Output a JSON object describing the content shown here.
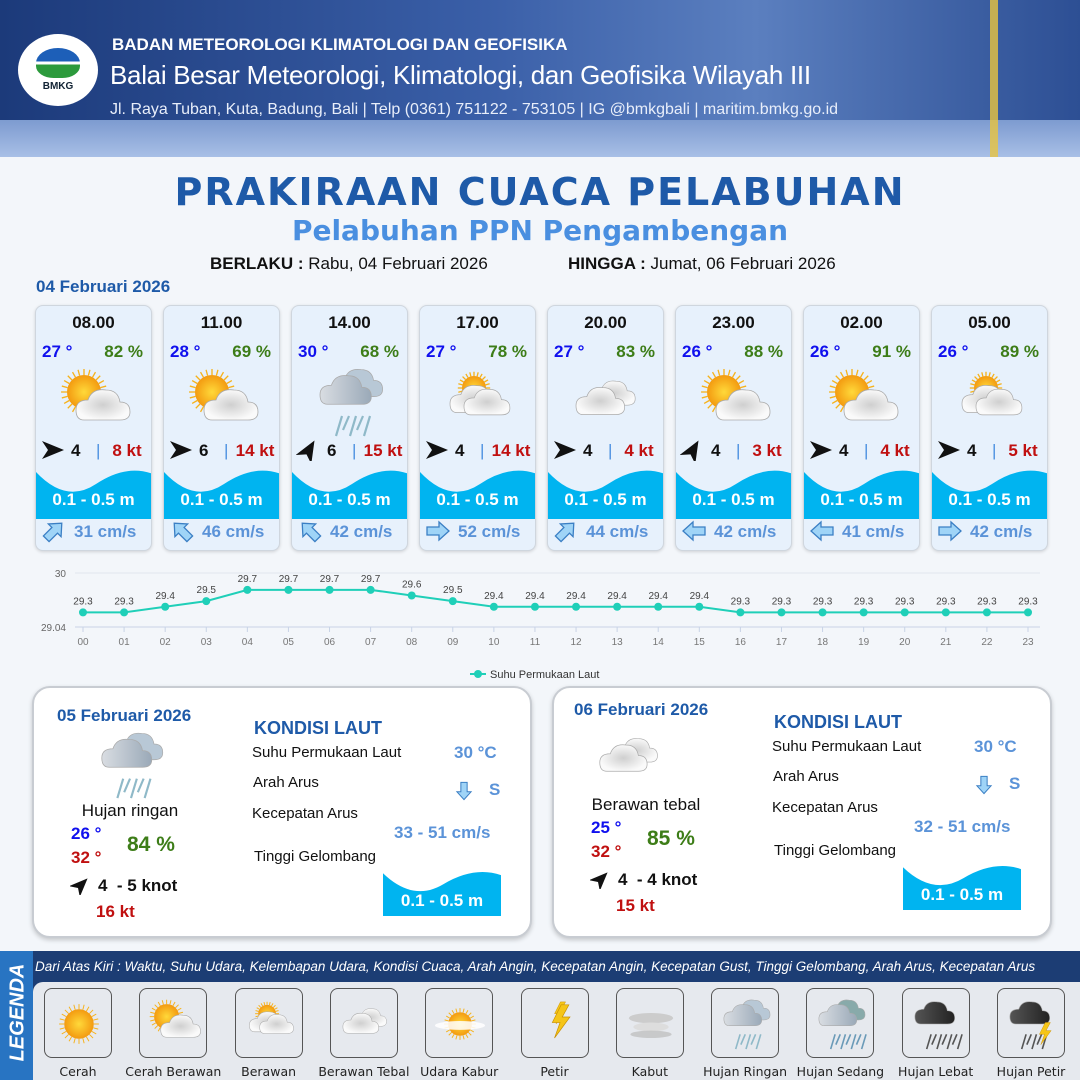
{
  "header": {
    "org": "BADAN METEOROLOGI KLIMATOLOGI DAN GEOFISIKA",
    "office": "Balai Besar Meteorologi, Klimatologi, dan Geofisika Wilayah III",
    "contact": "Jl. Raya Tuban, Kuta, Badung, Bali | Telp (0361) 751122 - 753105 | IG @bmkgbali | maritim.bmkg.go.id",
    "logo_text": "BMKG"
  },
  "title": "PRAKIRAAN CUACA PELABUHAN",
  "subtitle": "Pelabuhan PPN Pengambengan",
  "validity": {
    "from_label": "BERLAKU :",
    "from": "Rabu, 04 Februari 2026",
    "to_label": "HINGGA :",
    "to": "Jumat, 06 Februari 2026"
  },
  "today_date": "04 Februari 2026",
  "forecasts": [
    {
      "time": "08.00",
      "temp": "27 °",
      "humidity": "82 %",
      "icon": "cerah-berawan",
      "wind_dir_deg": 0,
      "wind_speed": "4",
      "gust": "8 kt",
      "wave": "0.1 - 0.5 m",
      "current_dir_deg": -45,
      "current_speed": "31 cm/s"
    },
    {
      "time": "11.00",
      "temp": "28 °",
      "humidity": "69 %",
      "icon": "cerah-berawan",
      "wind_dir_deg": 0,
      "wind_speed": "6",
      "gust": "14 kt",
      "wave": "0.1 - 0.5 m",
      "current_dir_deg": -135,
      "current_speed": "46 cm/s"
    },
    {
      "time": "14.00",
      "temp": "30 °",
      "humidity": "68 %",
      "icon": "hujan-ringan",
      "wind_dir_deg": -60,
      "wind_speed": "6",
      "gust": "15 kt",
      "wave": "0.1 - 0.5 m",
      "current_dir_deg": -135,
      "current_speed": "42 cm/s"
    },
    {
      "time": "17.00",
      "temp": "27 °",
      "humidity": "78 %",
      "icon": "berawan",
      "wind_dir_deg": 0,
      "wind_speed": "4",
      "gust": "14 kt",
      "wave": "0.1 - 0.5 m",
      "current_dir_deg": 0,
      "current_speed": "52 cm/s"
    },
    {
      "time": "20.00",
      "temp": "27 °",
      "humidity": "83 %",
      "icon": "berawan-tebal",
      "wind_dir_deg": 0,
      "wind_speed": "4",
      "gust": "4 kt",
      "wave": "0.1 - 0.5 m",
      "current_dir_deg": -45,
      "current_speed": "44 cm/s"
    },
    {
      "time": "23.00",
      "temp": "26 °",
      "humidity": "88 %",
      "icon": "cerah-berawan",
      "wind_dir_deg": -60,
      "wind_speed": "4",
      "gust": "3 kt",
      "wave": "0.1 - 0.5 m",
      "current_dir_deg": 180,
      "current_speed": "42 cm/s"
    },
    {
      "time": "02.00",
      "temp": "26 °",
      "humidity": "91 %",
      "icon": "cerah-berawan",
      "wind_dir_deg": 0,
      "wind_speed": "4",
      "gust": "4 kt",
      "wave": "0.1 - 0.5 m",
      "current_dir_deg": 180,
      "current_speed": "41 cm/s"
    },
    {
      "time": "05.00",
      "temp": "26 °",
      "humidity": "89 %",
      "icon": "berawan",
      "wind_dir_deg": 0,
      "wind_speed": "4",
      "gust": "5 kt",
      "wave": "0.1 - 0.5 m",
      "current_dir_deg": 0,
      "current_speed": "42 cm/s"
    }
  ],
  "chart_data": {
    "type": "line",
    "x": [
      "00",
      "01",
      "02",
      "03",
      "04",
      "05",
      "06",
      "07",
      "08",
      "09",
      "10",
      "11",
      "12",
      "13",
      "14",
      "15",
      "16",
      "17",
      "18",
      "19",
      "20",
      "21",
      "22",
      "23"
    ],
    "series": [
      {
        "name": "Suhu Permukaan Laut",
        "values": [
          29.3,
          29.3,
          29.4,
          29.5,
          29.7,
          29.7,
          29.7,
          29.7,
          29.6,
          29.5,
          29.4,
          29.4,
          29.4,
          29.4,
          29.4,
          29.4,
          29.3,
          29.3,
          29.3,
          29.3,
          29.3,
          29.3,
          29.3,
          29.3
        ],
        "color": "#1fcfb8"
      }
    ],
    "ylim": [
      29.04,
      30
    ],
    "yticks": [
      "29.04",
      "30"
    ],
    "legend": "bottom-center",
    "grid": true
  },
  "days": [
    {
      "date": "05 Februari 2026",
      "icon": "hujan-ringan",
      "condition": "Hujan ringan",
      "temp_min": "26 °",
      "temp_max": "32 °",
      "humidity": "84 %",
      "wind_dir_deg": -45,
      "wind": "4  - 5 knot",
      "gust": "16 kt",
      "sea_title": "KONDISI LAUT",
      "sst_label": "Suhu Permukaan Laut",
      "sst": "30 °C",
      "cur_dir_label": "Arah Arus",
      "cur_dir": "S",
      "cur_speed_label": "Kecepatan Arus",
      "cur_speed": "33 - 51 cm/s",
      "wave_label": "Tinggi Gelombang",
      "wave": "0.1 - 0.5 m"
    },
    {
      "date": "06 Februari 2026",
      "icon": "berawan-tebal",
      "condition": "Berawan tebal",
      "temp_min": "25 °",
      "temp_max": "32 °",
      "humidity": "85 %",
      "wind_dir_deg": -45,
      "wind": "4  - 4 knot",
      "gust": "15 kt",
      "sea_title": "KONDISI LAUT",
      "sst_label": "Suhu Permukaan Laut",
      "sst": "30 °C",
      "cur_dir_label": "Arah Arus",
      "cur_dir": "S",
      "cur_speed_label": "Kecepatan Arus",
      "cur_speed": "32 - 51 cm/s",
      "wave_label": "Tinggi Gelombang",
      "wave": "0.1 - 0.5 m"
    }
  ],
  "legend": {
    "title": "LEGENDA",
    "description": "Dari Atas Kiri : Waktu, Suhu Udara, Kelembapan Udara, Kondisi Cuaca, Arah Angin, Kecepatan Angin, Kecepatan Gust, Tinggi Gelombang, Arah Arus, Kecepatan Arus",
    "items": [
      {
        "label": "Cerah",
        "icon": "cerah"
      },
      {
        "label": "Cerah Berawan",
        "icon": "cerah-berawan"
      },
      {
        "label": "Berawan",
        "icon": "berawan"
      },
      {
        "label": "Berawan Tebal",
        "icon": "berawan-tebal"
      },
      {
        "label": "Udara Kabur",
        "icon": "udara-kabur"
      },
      {
        "label": "Petir",
        "icon": "petir"
      },
      {
        "label": "Kabut",
        "icon": "kabut"
      },
      {
        "label": "Hujan Ringan",
        "icon": "hujan-ringan"
      },
      {
        "label": "Hujan Sedang",
        "icon": "hujan-sedang"
      },
      {
        "label": "Hujan Lebat",
        "icon": "hujan-lebat"
      },
      {
        "label": "Hujan Petir",
        "icon": "hujan-petir"
      }
    ]
  },
  "colors": {
    "brand": "#1e5aa8",
    "wave": "#00b4f0",
    "temp": "#1010ee",
    "humidity": "#3d7d18",
    "gust": "#c01010",
    "current": "#5b93d8"
  }
}
